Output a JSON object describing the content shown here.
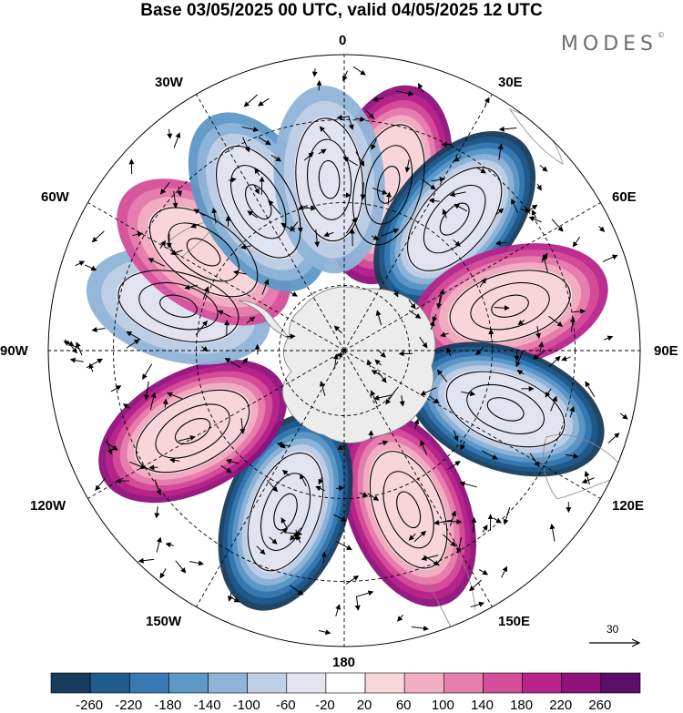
{
  "title": "Base 03/05/2025 00 UTC, valid 04/05/2025 12 UTC",
  "brand": {
    "name": "MODES",
    "mark": "©"
  },
  "longitude_labels": {
    "lon_0": "0",
    "lon_30e": "30E",
    "lon_60e": "60E",
    "lon_90e": "90E",
    "lon_120e": "120E",
    "lon_150e": "150E",
    "lon_180": "180",
    "lon_150w": "150W",
    "lon_120w": "120W",
    "lon_90w": "90W",
    "lon_60w": "60W",
    "lon_30w": "30W"
  },
  "reference_vector": {
    "label": "30"
  },
  "colorbar": {
    "colors": [
      "#173b5c",
      "#1f5b8c",
      "#3679b3",
      "#5d98c7",
      "#8fb4d8",
      "#bfcfe6",
      "#e4e4f1",
      "#ffffff",
      "#f7d7dc",
      "#f2afc3",
      "#e77fad",
      "#d54e9a",
      "#b8248a",
      "#8f117a",
      "#5c0e6b"
    ],
    "labels": [
      "-260",
      "-220",
      "-180",
      "-140",
      "-100",
      "-60",
      "-20",
      "20",
      "60",
      "100",
      "140",
      "180",
      "220",
      "260"
    ]
  },
  "map": {
    "projection": "south polar stereographic",
    "land_color": "#ececec",
    "anomaly_centers": [
      {
        "lon": 15,
        "value": 220
      },
      {
        "lon": 40,
        "value": -250
      },
      {
        "lon": 75,
        "value": 180
      },
      {
        "lon": 110,
        "value": -250
      },
      {
        "lon": 158,
        "value": 230
      },
      {
        "lon": 200,
        "value": -260
      },
      {
        "lon": 242,
        "value": 220
      },
      {
        "lon": 285,
        "value": -120
      },
      {
        "lon": 305,
        "value": 160
      },
      {
        "lon": 330,
        "value": -160
      },
      {
        "lon": 355,
        "value": -90
      }
    ]
  }
}
